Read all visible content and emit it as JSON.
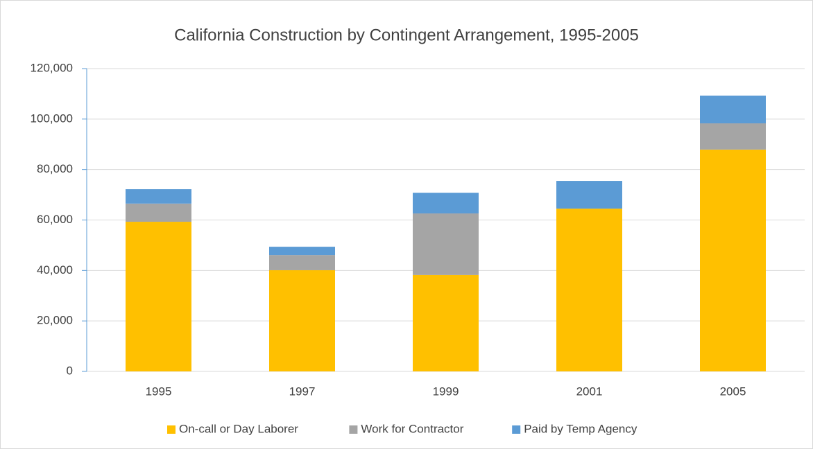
{
  "chart_data": {
    "type": "stacked_bar",
    "title": "California Construction by Contingent Arrangement, 1995-2005",
    "categories": [
      "1995",
      "1997",
      "1999",
      "2001",
      "2005"
    ],
    "series": [
      {
        "name": "On-call or Day Laborer",
        "color": "#ffc000",
        "values": [
          59300,
          40100,
          38200,
          64500,
          87900
        ]
      },
      {
        "name": "Work for Contractor",
        "color": "#a5a5a5",
        "values": [
          7200,
          6000,
          24400,
          0,
          10400
        ]
      },
      {
        "name": "Paid by Temp Agency",
        "color": "#5b9bd5",
        "values": [
          5700,
          3300,
          8200,
          11000,
          11000
        ]
      }
    ],
    "ylim": [
      0,
      120000
    ],
    "yticks": [
      0,
      {
        "value": 20000,
        "label": "20,000"
      },
      {
        "value": 40000,
        "label": "40,000"
      },
      {
        "value": 60000,
        "label": "60,000"
      },
      {
        "value": 80000,
        "label": "80,000"
      },
      {
        "value": 100000,
        "label": "100,000"
      },
      {
        "value": 120000,
        "label": "120,000"
      }
    ],
    "grid": true,
    "legend": "bottom"
  }
}
